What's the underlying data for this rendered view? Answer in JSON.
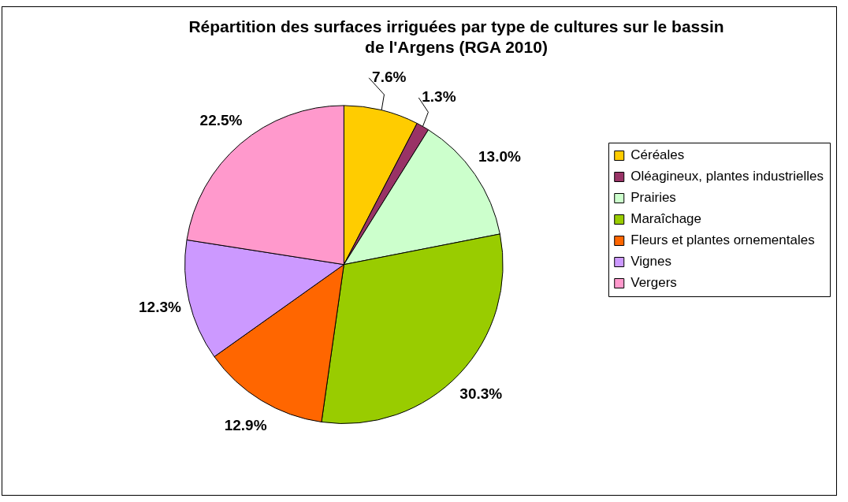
{
  "chart_data": {
    "type": "pie",
    "title": "Répartition des surfaces irriguées par type de cultures sur le bassin de l'Argens (RGA 2010)",
    "categories": [
      "Céréales",
      "Oléagineux, plantes industrielles",
      "Prairies",
      "Maraîchage",
      "Fleurs et plantes ornementales",
      "Vignes",
      "Vergers"
    ],
    "values": [
      7.6,
      1.3,
      13.0,
      30.3,
      12.9,
      12.3,
      22.5
    ],
    "colors": [
      "#ffcc00",
      "#993366",
      "#ccffcc",
      "#99cc00",
      "#ff6600",
      "#cc99ff",
      "#ff99cc"
    ],
    "value_labels": [
      "7.6%",
      "1.3%",
      "13.0%",
      "30.3%",
      "12.9%",
      "12.3%",
      "22.5%"
    ],
    "legend": "right"
  }
}
